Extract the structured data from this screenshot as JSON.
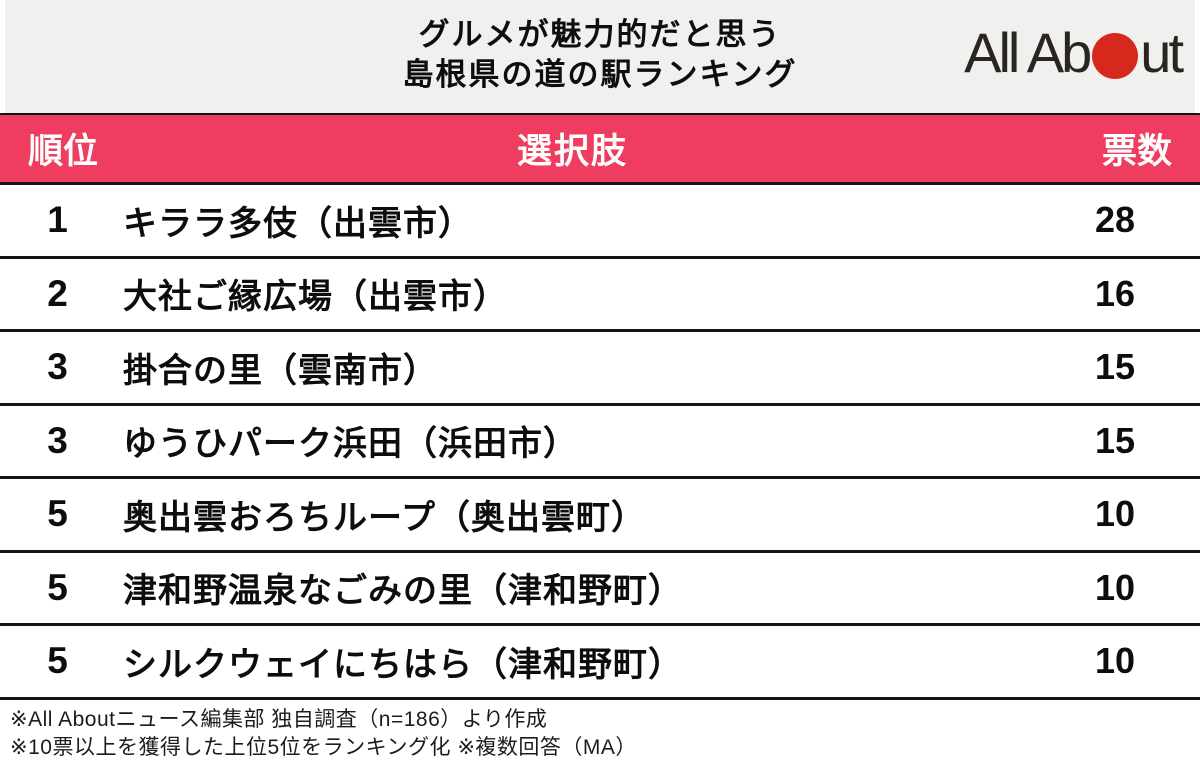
{
  "header": {
    "title_line1": "グルメが魅力的だと思う",
    "title_line2": "島根県の道の駅ランキング",
    "logo": {
      "text_before": "All Ab",
      "text_after": "ut",
      "dot_color": "#d7281e"
    }
  },
  "table": {
    "columns": {
      "rank": "順位",
      "choice": "選択肢",
      "votes": "票数"
    },
    "rows": [
      {
        "rank": "1",
        "name": "キララ多伎（出雲市）",
        "votes": "28"
      },
      {
        "rank": "2",
        "name": "大社ご縁広場（出雲市）",
        "votes": "16"
      },
      {
        "rank": "3",
        "name": "掛合の里（雲南市）",
        "votes": "15"
      },
      {
        "rank": "3",
        "name": "ゆうひパーク浜田（浜田市）",
        "votes": "15"
      },
      {
        "rank": "5",
        "name": "奥出雲おろちループ（奥出雲町）",
        "votes": "10"
      },
      {
        "rank": "5",
        "name": "津和野温泉なごみの里（津和野町）",
        "votes": "10"
      },
      {
        "rank": "5",
        "name": "シルクウェイにちはら（津和野町）",
        "votes": "10"
      }
    ]
  },
  "footnotes": [
    "※All Aboutニュース編集部 独自調査（n=186）より作成",
    "※10票以上を獲得した上位5位をランキング化 ※複数回答（MA）"
  ],
  "colors": {
    "accent_pink": "#ee3d5e",
    "logo_red": "#d7281e",
    "top_band_bg": "#f0f0ee",
    "border_black": "#141414"
  },
  "chart_data": {
    "type": "table",
    "title": "グルメが魅力的だと思う島根県の道の駅ランキング",
    "columns": [
      "順位",
      "選択肢",
      "票数"
    ],
    "rows": [
      [
        1,
        "キララ多伎（出雲市）",
        28
      ],
      [
        2,
        "大社ご縁広場（出雲市）",
        16
      ],
      [
        3,
        "掛合の里（雲南市）",
        15
      ],
      [
        3,
        "ゆうひパーク浜田（浜田市）",
        15
      ],
      [
        5,
        "奥出雲おろちループ（奥出雲町）",
        10
      ],
      [
        5,
        "津和野温泉なごみの里（津和野町）",
        10
      ],
      [
        5,
        "シルクウェイにちはら（津和野町）",
        10
      ]
    ],
    "notes": [
      "※All Aboutニュース編集部 独自調査（n=186）より作成",
      "※10票以上を獲得した上位5位をランキング化 ※複数回答（MA）"
    ]
  }
}
